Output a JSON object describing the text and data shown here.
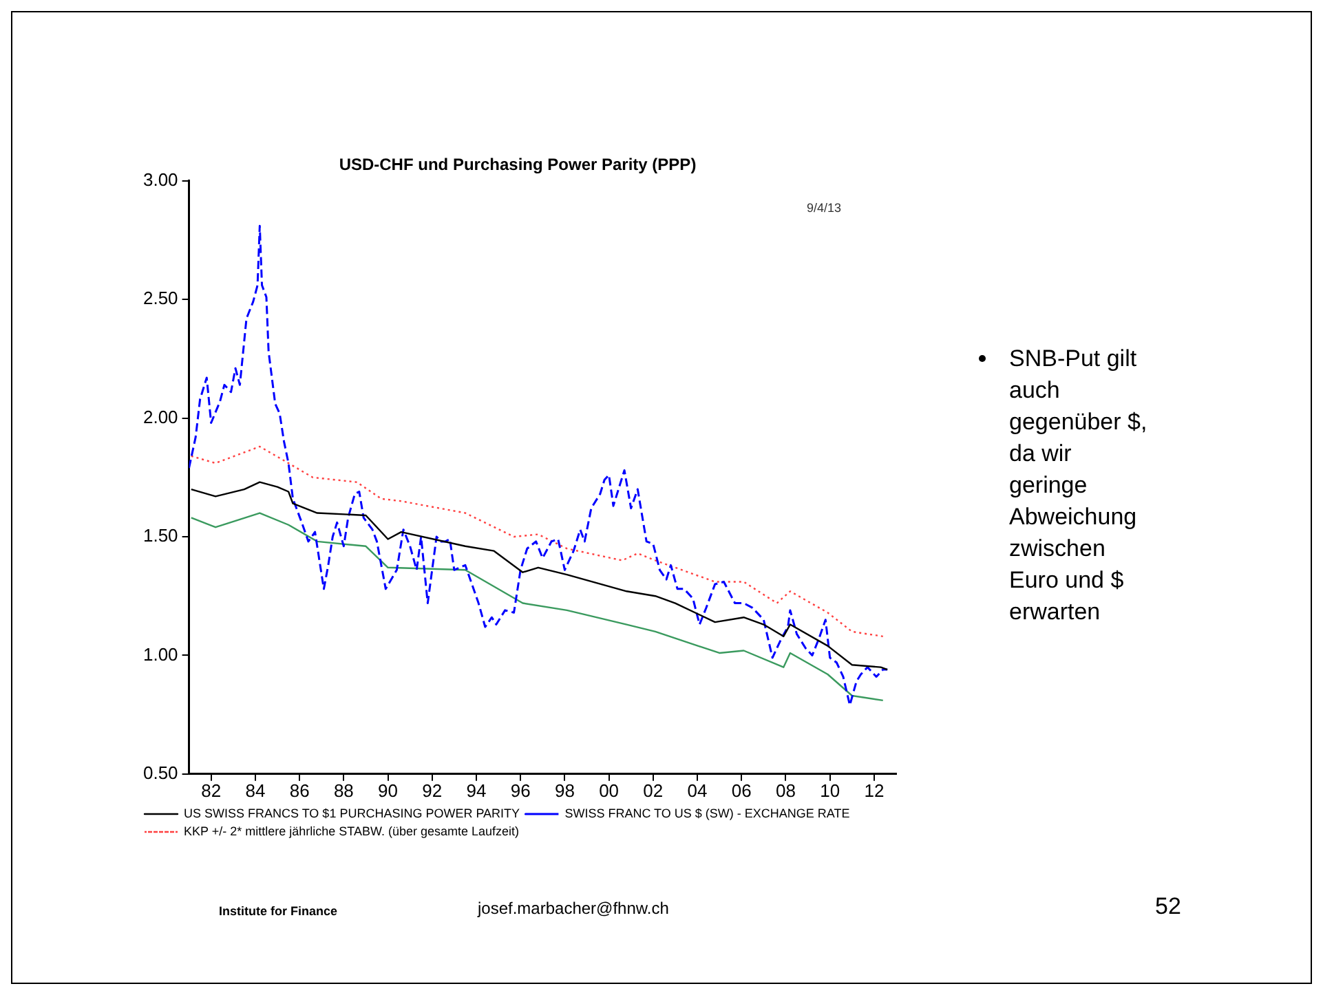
{
  "chart_data": {
    "type": "line",
    "title": "USD-CHF und Purchasing Power Parity (PPP)",
    "xlim": [
      1981,
      2013
    ],
    "xticks": [
      {
        "value": 1982,
        "label": "82"
      },
      {
        "value": 1984,
        "label": "84"
      },
      {
        "value": 1986,
        "label": "86"
      },
      {
        "value": 1988,
        "label": "88"
      },
      {
        "value": 1990,
        "label": "90"
      },
      {
        "value": 1992,
        "label": "92"
      },
      {
        "value": 1994,
        "label": "94"
      },
      {
        "value": 1996,
        "label": "96"
      },
      {
        "value": 1998,
        "label": "98"
      },
      {
        "value": 2000,
        "label": "00"
      },
      {
        "value": 2002,
        "label": "02"
      },
      {
        "value": 2004,
        "label": "04"
      },
      {
        "value": 2006,
        "label": "06"
      },
      {
        "value": 2008,
        "label": "08"
      },
      {
        "value": 2010,
        "label": "10"
      },
      {
        "value": 2012,
        "label": "12"
      }
    ],
    "ylim": [
      0.5,
      3.0
    ],
    "yticks": [
      {
        "value": 0.5,
        "label": "0.50"
      },
      {
        "value": 1.0,
        "label": "1.00"
      },
      {
        "value": 1.5,
        "label": "1.50"
      },
      {
        "value": 2.0,
        "label": "2.00"
      },
      {
        "value": 2.5,
        "label": "2.50"
      },
      {
        "value": 3.0,
        "label": "3.00"
      }
    ],
    "grid": false,
    "legend": "bottom",
    "marker": "none",
    "series": [
      {
        "name": "US SWISS FRANCS TO $1 PURCHASING POWER PARITY",
        "color": "#000000",
        "line_style": "solid",
        "x": [
          1981.1,
          1982.2,
          1983.5,
          1984.2,
          1985,
          1985.5,
          1985.7,
          1986.8,
          1989,
          1990,
          1990.6,
          1993.5,
          1994.8,
          1996.1,
          1996.8,
          1998.1,
          2000.8,
          2002.1,
          2003,
          2004.8,
          2006.1,
          2007,
          2007.9,
          2008.2,
          2009.9,
          2011,
          2012.3,
          2012.6
        ],
        "values": [
          1.7,
          1.67,
          1.7,
          1.73,
          1.71,
          1.69,
          1.64,
          1.6,
          1.59,
          1.49,
          1.52,
          1.46,
          1.44,
          1.35,
          1.37,
          1.34,
          1.27,
          1.25,
          1.22,
          1.14,
          1.16,
          1.13,
          1.08,
          1.13,
          1.04,
          0.96,
          0.95,
          0.94
        ]
      },
      {
        "name": "SWISS FRANC TO US $ (SW) - EXCHANGE RATE",
        "color": "#0000ff",
        "line_style": "dashed",
        "x": [
          1981.0,
          1981.3,
          1981.5,
          1981.8,
          1982.0,
          1982.4,
          1982.6,
          1982.9,
          1983.1,
          1983.3,
          1983.6,
          1983.9,
          1984.1,
          1984.2,
          1984.3,
          1984.5,
          1984.6,
          1984.9,
          1985.1,
          1985.3,
          1985.5,
          1985.7,
          1986.1,
          1986.4,
          1986.7,
          1987.1,
          1987.3,
          1987.5,
          1987.7,
          1988.0,
          1988.2,
          1988.5,
          1988.7,
          1988.9,
          1989.3,
          1989.5,
          1989.9,
          1990.4,
          1990.7,
          1991.0,
          1991.3,
          1991.5,
          1991.8,
          1992.2,
          1992.4,
          1992.6,
          1992.8,
          1993.0,
          1993.5,
          1993.8,
          1994.1,
          1994.4,
          1994.7,
          1994.9,
          1995.3,
          1995.7,
          1996.0,
          1996.3,
          1996.7,
          1997.0,
          1997.4,
          1997.7,
          1998.0,
          1998.4,
          1998.7,
          1998.9,
          1999.2,
          1999.6,
          1999.8,
          2000.0,
          2000.2,
          2000.5,
          2000.7,
          2001.0,
          2001.3,
          2001.7,
          2002.0,
          2002.3,
          2002.6,
          2002.8,
          2003.1,
          2003.4,
          2003.8,
          2004.1,
          2004.4,
          2004.8,
          2005.2,
          2005.7,
          2006.1,
          2006.5,
          2007.0,
          2007.4,
          2007.8,
          2008.1,
          2008.2,
          2008.5,
          2008.9,
          2009.2,
          2009.5,
          2009.8,
          2010.0,
          2010.3,
          2010.6,
          2010.9,
          2011.2,
          2011.4,
          2011.7,
          2012.1,
          2012.4,
          2012.6
        ],
        "values": [
          1.79,
          1.92,
          2.08,
          2.17,
          1.98,
          2.07,
          2.14,
          2.11,
          2.21,
          2.14,
          2.42,
          2.49,
          2.56,
          2.81,
          2.56,
          2.51,
          2.28,
          2.06,
          2.02,
          1.9,
          1.81,
          1.66,
          1.56,
          1.48,
          1.52,
          1.28,
          1.38,
          1.5,
          1.56,
          1.46,
          1.58,
          1.68,
          1.69,
          1.58,
          1.53,
          1.48,
          1.28,
          1.36,
          1.53,
          1.46,
          1.36,
          1.5,
          1.22,
          1.5,
          1.48,
          1.48,
          1.49,
          1.36,
          1.38,
          1.3,
          1.22,
          1.12,
          1.16,
          1.13,
          1.19,
          1.18,
          1.36,
          1.45,
          1.48,
          1.41,
          1.48,
          1.49,
          1.36,
          1.44,
          1.53,
          1.48,
          1.62,
          1.68,
          1.74,
          1.76,
          1.63,
          1.72,
          1.78,
          1.62,
          1.7,
          1.48,
          1.47,
          1.36,
          1.32,
          1.38,
          1.28,
          1.28,
          1.24,
          1.13,
          1.2,
          1.3,
          1.31,
          1.22,
          1.22,
          1.2,
          1.15,
          0.99,
          1.07,
          1.12,
          1.19,
          1.09,
          1.03,
          1.0,
          1.07,
          1.15,
          0.99,
          0.97,
          0.91,
          0.79,
          0.89,
          0.92,
          0.95,
          0.91,
          0.94,
          0.94
        ]
      },
      {
        "name": "KKP +/- 2* mittlere jährliche STABW. (über gesamte Laufzeit)",
        "color": "#ff4040",
        "line_style": "dotted",
        "x": [
          1981.1,
          1982.2,
          1984.2,
          1985.5,
          1986.6,
          1988.6,
          1989.7,
          1990.6,
          1993.5,
          1995.7,
          1996.8,
          1998.1,
          2000.6,
          2001.3,
          2002.1,
          2004.8,
          2006.1,
          2007.6,
          2008.2,
          2009.9,
          2011.0,
          2012.4
        ],
        "values": [
          1.84,
          1.81,
          1.88,
          1.81,
          1.75,
          1.73,
          1.66,
          1.65,
          1.6,
          1.5,
          1.51,
          1.45,
          1.4,
          1.43,
          1.4,
          1.31,
          1.31,
          1.22,
          1.27,
          1.18,
          1.1,
          1.08
        ]
      },
      {
        "color": "#3a9a5e",
        "line_style": "solid",
        "x": [
          1981.1,
          1982.2,
          1984.2,
          1985.5,
          1986.8,
          1989.0,
          1990.0,
          1993.5,
          1996.1,
          1998.1,
          2000.8,
          2002.1,
          2005.0,
          2006.1,
          2007.9,
          2008.2,
          2009.9,
          2011.0,
          2012.4
        ],
        "values": [
          1.58,
          1.54,
          1.6,
          1.55,
          1.48,
          1.46,
          1.37,
          1.36,
          1.22,
          1.19,
          1.13,
          1.1,
          1.01,
          1.02,
          0.95,
          1.01,
          0.92,
          0.83,
          0.81
        ]
      }
    ],
    "annotations": [
      "9/4/13",
      "SNB-Put gilt auch gegenüber $, da wir geringe Abweichung zwischen Euro und $ erwarten",
      "Institute for Finance",
      "josef.marbacher@fhnw.ch",
      "52"
    ]
  }
}
